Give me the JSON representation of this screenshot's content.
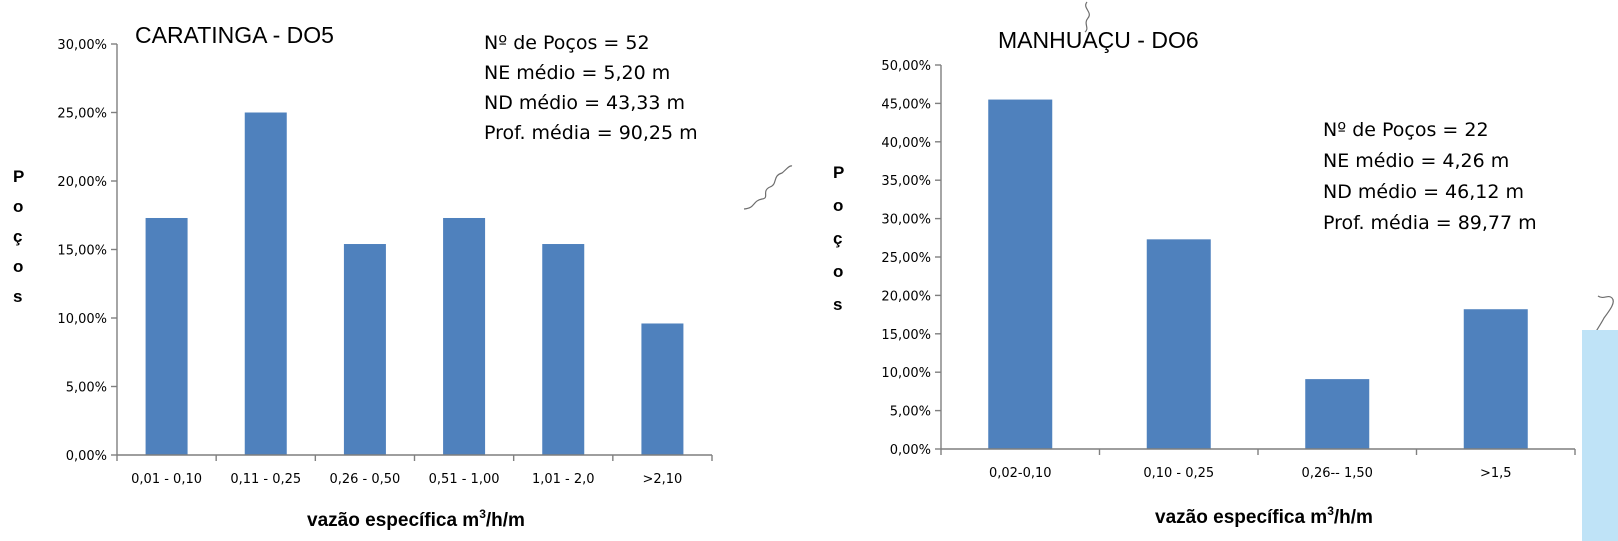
{
  "chart_data": [
    {
      "type": "bar",
      "title": "CARATINGA - DO5",
      "stats": [
        "Nº de Poços = 52",
        "NE médio = 5,20 m",
        "ND médio = 43,33 m",
        "Prof. média = 90,25 m"
      ],
      "categories": [
        "0,01 - 0,10",
        "0,11 - 0,25",
        "0,26 - 0,50",
        "0,51 - 1,00",
        "1,01 - 2,0",
        ">2,10"
      ],
      "values": [
        17.3,
        25.0,
        15.4,
        17.3,
        15.4,
        9.6
      ],
      "yticks": [
        "0,00%",
        "5,00%",
        "10,00%",
        "15,00%",
        "20,00%",
        "25,00%",
        "30,00%"
      ],
      "ylim": [
        0,
        30
      ],
      "xlabel_main": "vazão específica m",
      "xlabel_sup": "3",
      "xlabel_tail": "/h/m",
      "ylabel": [
        "P",
        "o",
        "ç",
        "o",
        "s"
      ],
      "bar_color": "#4f81bd",
      "grid": false
    },
    {
      "type": "bar",
      "title": "MANHUAÇU - DO6",
      "stats": [
        "Nº de Poços = 22",
        "NE médio = 4,26 m",
        "ND médio = 46,12 m",
        "Prof. média = 89,77 m"
      ],
      "categories": [
        "0,02-0,10",
        "0,10 - 0,25",
        "0,26-- 1,50",
        ">1,5"
      ],
      "values": [
        45.5,
        27.3,
        9.1,
        18.2
      ],
      "yticks": [
        "0,00%",
        "5,00%",
        "10,00%",
        "15,00%",
        "20,00%",
        "25,00%",
        "30,00%",
        "35,00%",
        "40,00%",
        "45,00%",
        "50,00%"
      ],
      "ylim": [
        0,
        50
      ],
      "xlabel_main": "vazão específica m",
      "xlabel_sup": "3",
      "xlabel_tail": "/h/m",
      "ylabel": [
        "P",
        "o",
        "ç",
        "o",
        "s"
      ],
      "bar_color": "#4f81bd",
      "grid": false
    }
  ],
  "decor": {
    "light_panel_color": "#bfe3f7"
  }
}
